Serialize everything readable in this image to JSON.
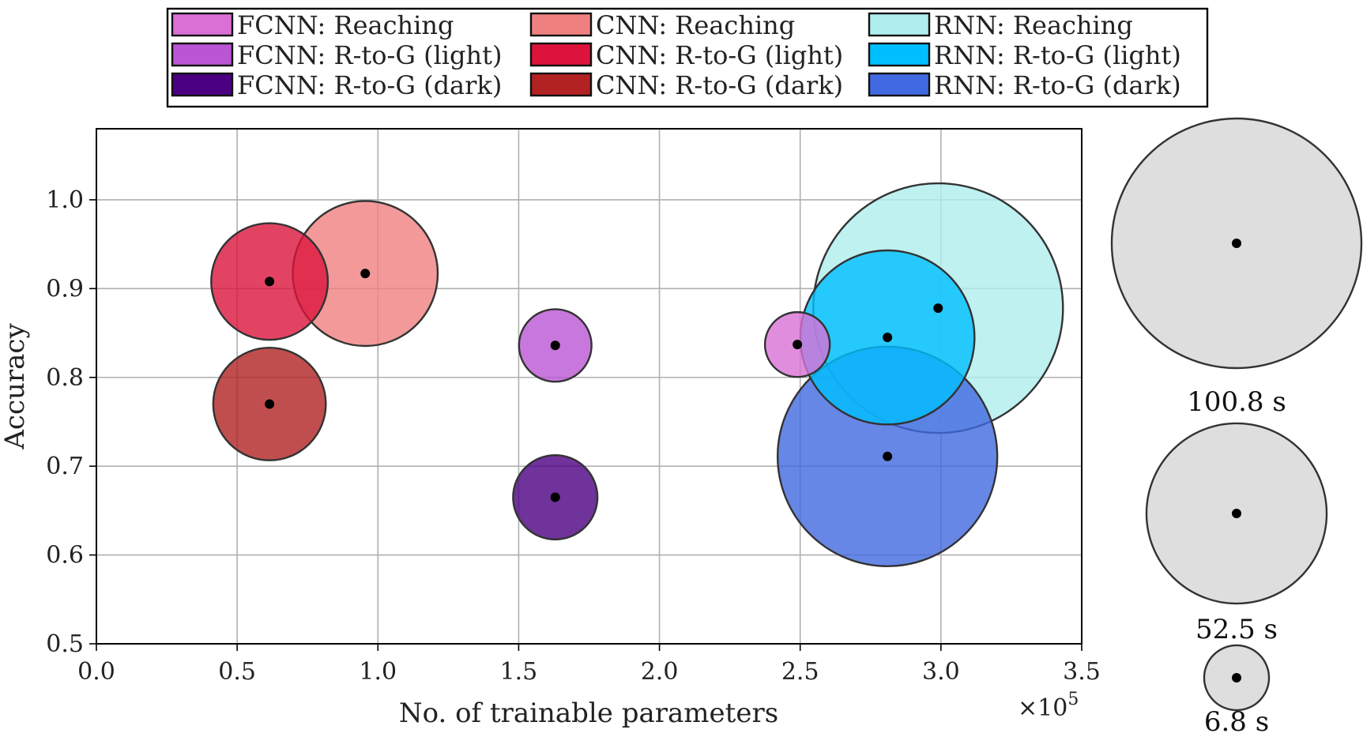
{
  "chart_data": {
    "type": "scatter",
    "xlabel": "No. of trainable parameters",
    "ylabel": "Accuracy",
    "x_multiplier": "×10",
    "x_multiplier_exp": "5",
    "xlim": [
      0.0,
      3.5
    ],
    "ylim": [
      0.5,
      1.08
    ],
    "xticks": [
      "0.0",
      "0.5",
      "1.0",
      "1.5",
      "2.0",
      "2.5",
      "3.0",
      "3.5"
    ],
    "yticks": [
      "0.5",
      "0.6",
      "0.7",
      "0.8",
      "0.9",
      "1.0"
    ],
    "grid": true,
    "legend_position": "top",
    "size_encodes": "training time (s)",
    "series": [
      {
        "name": "FCNN: Reaching",
        "color": "#DA70D6",
        "x": 2.49,
        "y": 0.837,
        "time": 6.8
      },
      {
        "name": "FCNN: R-to-G (light)",
        "color": "#BA55D3",
        "x": 1.63,
        "y": 0.836,
        "time": 8.5
      },
      {
        "name": "FCNN: R-to-G (dark)",
        "color": "#4B0082",
        "x": 1.63,
        "y": 0.665,
        "time": 11.5
      },
      {
        "name": "CNN: Reaching",
        "color": "#F08080",
        "x": 0.955,
        "y": 0.917,
        "time": 34.0
      },
      {
        "name": "CNN: R-to-G (light)",
        "color": "#DC143C",
        "x": 0.615,
        "y": 0.908,
        "time": 22.0
      },
      {
        "name": "CNN: R-to-G (dark)",
        "color": "#B22222",
        "x": 0.615,
        "y": 0.77,
        "time": 20.5
      },
      {
        "name": "RNN: Reaching",
        "color": "#AFEEEE",
        "x": 2.99,
        "y": 0.878,
        "time": 100.8
      },
      {
        "name": "RNN: R-to-G (light)",
        "color": "#00BFFF",
        "x": 2.81,
        "y": 0.845,
        "time": 49.0
      },
      {
        "name": "RNN: R-to-G (dark)",
        "color": "#4169E1",
        "x": 2.81,
        "y": 0.711,
        "time": 78.0
      }
    ],
    "size_legend": [
      {
        "label": "100.8 s",
        "time": 100.8
      },
      {
        "label": "52.5 s",
        "time": 52.5
      },
      {
        "label": "6.8 s",
        "time": 6.8
      }
    ]
  }
}
